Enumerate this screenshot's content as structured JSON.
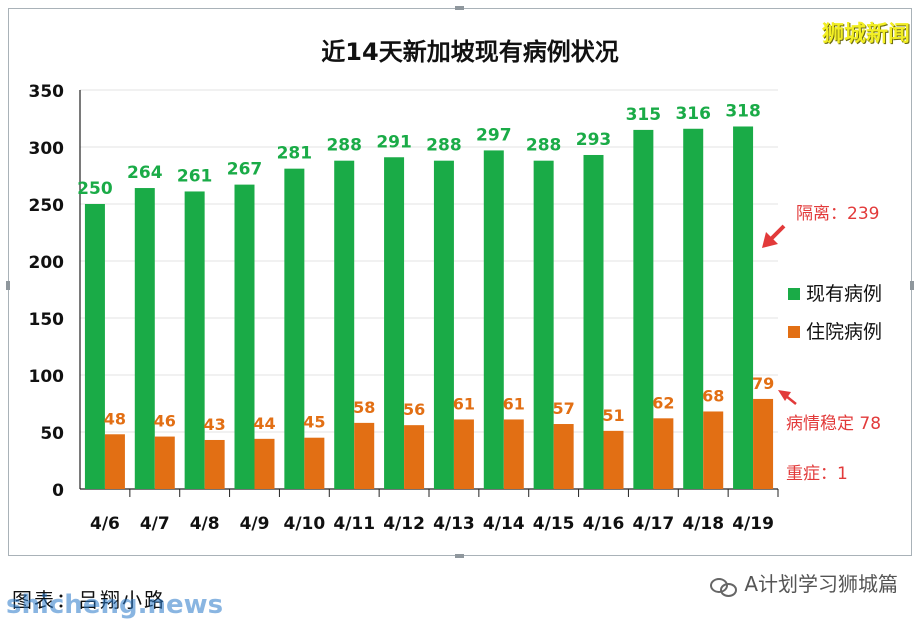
{
  "chart_data": {
    "type": "bar",
    "title": "近14天新加坡现有病例状况",
    "categories": [
      "4/6",
      "4/7",
      "4/8",
      "4/9",
      "4/10",
      "4/11",
      "4/12",
      "4/13",
      "4/14",
      "4/15",
      "4/16",
      "4/17",
      "4/18",
      "4/19"
    ],
    "series": [
      {
        "name": "现有病例",
        "color": "#1aab47",
        "values": [
          250,
          264,
          261,
          267,
          281,
          288,
          291,
          288,
          297,
          288,
          293,
          315,
          316,
          318
        ]
      },
      {
        "name": "住院病例",
        "color": "#e26f14",
        "values": [
          48,
          46,
          43,
          44,
          45,
          58,
          56,
          61,
          61,
          57,
          51,
          62,
          68,
          79
        ]
      }
    ],
    "ylim": [
      0,
      350
    ],
    "yticks": [
      0,
      50,
      100,
      150,
      200,
      250,
      300,
      350
    ],
    "grid": true,
    "legend": "right",
    "annotations": {
      "isolation": "隔离：239",
      "stable": "病情稳定 78",
      "severe": "重症：1",
      "arrow_color": "#e23a3a"
    }
  },
  "watermark": "狮城新闻",
  "caption": "图表：吕翔小路",
  "site": "shicheng.news",
  "account": "A计划学习狮城篇"
}
